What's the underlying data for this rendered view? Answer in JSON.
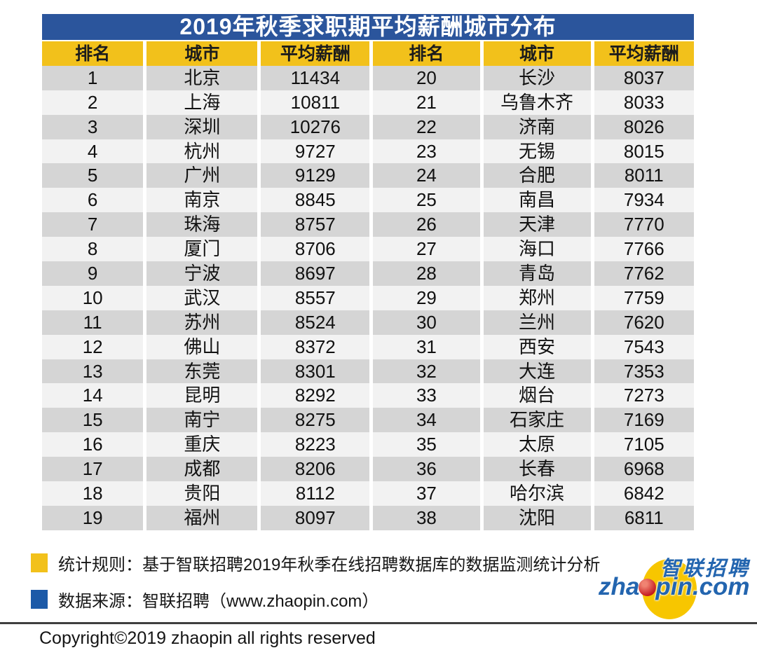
{
  "title": "2019年秋季求职期平均薪酬城市分布",
  "table": {
    "headers": [
      "排名",
      "城市",
      "平均薪酬",
      "排名",
      "城市",
      "平均薪酬"
    ],
    "left_rows": [
      [
        "1",
        "北京",
        "11434"
      ],
      [
        "2",
        "上海",
        "10811"
      ],
      [
        "3",
        "深圳",
        "10276"
      ],
      [
        "4",
        "杭州",
        "9727"
      ],
      [
        "5",
        "广州",
        "9129"
      ],
      [
        "6",
        "南京",
        "8845"
      ],
      [
        "7",
        "珠海",
        "8757"
      ],
      [
        "8",
        "厦门",
        "8706"
      ],
      [
        "9",
        "宁波",
        "8697"
      ],
      [
        "10",
        "武汉",
        "8557"
      ],
      [
        "11",
        "苏州",
        "8524"
      ],
      [
        "12",
        "佛山",
        "8372"
      ],
      [
        "13",
        "东莞",
        "8301"
      ],
      [
        "14",
        "昆明",
        "8292"
      ],
      [
        "15",
        "南宁",
        "8275"
      ],
      [
        "16",
        "重庆",
        "8223"
      ],
      [
        "17",
        "成都",
        "8206"
      ],
      [
        "18",
        "贵阳",
        "8112"
      ],
      [
        "19",
        "福州",
        "8097"
      ]
    ],
    "right_rows": [
      [
        "20",
        "长沙",
        "8037"
      ],
      [
        "21",
        "乌鲁木齐",
        "8033"
      ],
      [
        "22",
        "济南",
        "8026"
      ],
      [
        "23",
        "无锡",
        "8015"
      ],
      [
        "24",
        "合肥",
        "8011"
      ],
      [
        "25",
        "南昌",
        "7934"
      ],
      [
        "26",
        "天津",
        "7770"
      ],
      [
        "27",
        "海口",
        "7766"
      ],
      [
        "28",
        "青岛",
        "7762"
      ],
      [
        "29",
        "郑州",
        "7759"
      ],
      [
        "30",
        "兰州",
        "7620"
      ],
      [
        "31",
        "西安",
        "7543"
      ],
      [
        "32",
        "大连",
        "7353"
      ],
      [
        "33",
        "烟台",
        "7273"
      ],
      [
        "34",
        "石家庄",
        "7169"
      ],
      [
        "35",
        "太原",
        "7105"
      ],
      [
        "36",
        "长春",
        "6968"
      ],
      [
        "37",
        "哈尔滨",
        "6842"
      ],
      [
        "38",
        "沈阳",
        "6811"
      ]
    ]
  },
  "chart_data": {
    "type": "table",
    "title": "2019年秋季求职期平均薪酬城市分布",
    "columns": [
      "排名",
      "城市",
      "平均薪酬"
    ],
    "rows": [
      [
        1,
        "北京",
        11434
      ],
      [
        2,
        "上海",
        10811
      ],
      [
        3,
        "深圳",
        10276
      ],
      [
        4,
        "杭州",
        9727
      ],
      [
        5,
        "广州",
        9129
      ],
      [
        6,
        "南京",
        8845
      ],
      [
        7,
        "珠海",
        8757
      ],
      [
        8,
        "厦门",
        8706
      ],
      [
        9,
        "宁波",
        8697
      ],
      [
        10,
        "武汉",
        8557
      ],
      [
        11,
        "苏州",
        8524
      ],
      [
        12,
        "佛山",
        8372
      ],
      [
        13,
        "东莞",
        8301
      ],
      [
        14,
        "昆明",
        8292
      ],
      [
        15,
        "南宁",
        8275
      ],
      [
        16,
        "重庆",
        8223
      ],
      [
        17,
        "成都",
        8206
      ],
      [
        18,
        "贵阳",
        8112
      ],
      [
        19,
        "福州",
        8097
      ],
      [
        20,
        "长沙",
        8037
      ],
      [
        21,
        "乌鲁木齐",
        8033
      ],
      [
        22,
        "济南",
        8026
      ],
      [
        23,
        "无锡",
        8015
      ],
      [
        24,
        "合肥",
        8011
      ],
      [
        25,
        "南昌",
        7934
      ],
      [
        26,
        "天津",
        7770
      ],
      [
        27,
        "海口",
        7766
      ],
      [
        28,
        "青岛",
        7762
      ],
      [
        29,
        "郑州",
        7759
      ],
      [
        30,
        "兰州",
        7620
      ],
      [
        31,
        "西安",
        7543
      ],
      [
        32,
        "大连",
        7353
      ],
      [
        33,
        "烟台",
        7273
      ],
      [
        34,
        "石家庄",
        7169
      ],
      [
        35,
        "太原",
        7105
      ],
      [
        36,
        "长春",
        6968
      ],
      [
        37,
        "哈尔滨",
        6842
      ],
      [
        38,
        "沈阳",
        6811
      ]
    ]
  },
  "notes": [
    {
      "bullet_color": "#f2c11b",
      "text": "统计规则：基于智联招聘2019年秋季在线招聘数据库的数据监测统计分析"
    },
    {
      "bullet_color": "#1c5aa8",
      "text": "数据来源：智联招聘（www.zhaopin.com）"
    }
  ],
  "logo": {
    "cn": "智联招聘",
    "domain_pre": "zha",
    "domain_post": "pin.com"
  },
  "copyright": "Copyright©2019 zhaopin all rights reserved",
  "colors": {
    "title_bg": "#2b559c",
    "header_bg": "#f2c11b",
    "row_dark": "#d5d5d5",
    "row_light": "#f2f2f2",
    "logo_blue": "#2365af",
    "logo_yellow": "#f7c600",
    "logo_red": "#c3161c"
  }
}
